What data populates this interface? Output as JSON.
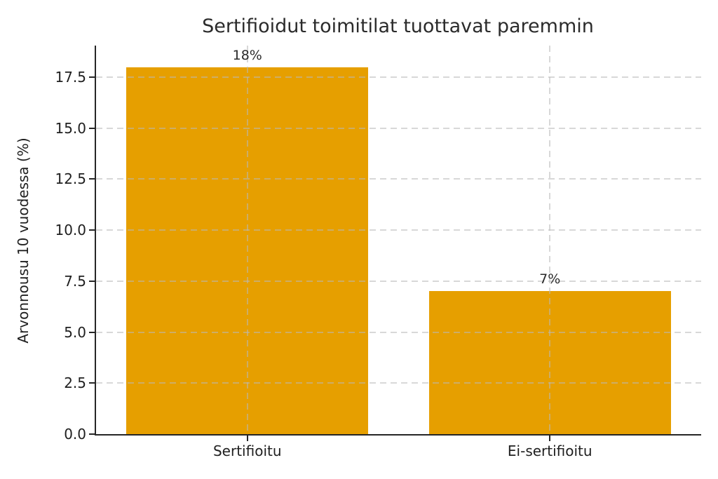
{
  "chart_data": {
    "type": "bar",
    "title": "Sertifioidut toimitilat tuottavat paremmin",
    "categories": [
      "Sertifioitu",
      "Ei-sertifioitu"
    ],
    "values": [
      18,
      7
    ],
    "bar_labels": [
      "18%",
      "7%"
    ],
    "xlabel": "",
    "ylabel": "Arvonnousu 10 vuodessa (%)",
    "ylim": [
      0,
      19.05
    ],
    "yticks": [
      "0.0",
      "2.5",
      "5.0",
      "7.5",
      "10.0",
      "12.5",
      "15.0",
      "17.5"
    ],
    "bar_width_fraction": 0.8,
    "grid": {
      "horizontal": true,
      "vertical": true,
      "style": "dashed",
      "drawn_over_bars": true
    },
    "legend": null,
    "colors": {
      "bar": "#E69F00",
      "text": "#1f1f1f",
      "title": "#2b2b2b",
      "grid": "#b9b9b9",
      "spine": "#262626",
      "background": "#ffffff"
    }
  }
}
